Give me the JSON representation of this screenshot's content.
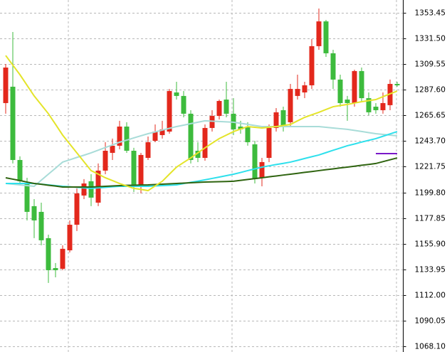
{
  "chart_data": {
    "type": "candlestick",
    "ylim": [
      1063.2,
      1364.4
    ],
    "yticks": [
      {
        "value": 1068.1,
        "label": "1068.10"
      },
      1090.05,
      {
        "value": 1112,
        "label": "1112.00"
      },
      1133.95,
      {
        "value": 1155.9,
        "label": "1155.90"
      },
      1177.85,
      {
        "value": 1199.8,
        "label": "1199.80"
      },
      1221.75,
      {
        "value": 1243.7,
        "label": "1243.70"
      },
      1265.65,
      {
        "value": 1287.6,
        "label": "1287.60"
      },
      1309.55,
      {
        "value": 1331.5,
        "label": "1331.50"
      },
      1353.45
    ],
    "grid": true,
    "up_color": "#e3281c",
    "down_color": "#3dbb3d",
    "open": [
      1276.2,
      1290.2,
      1227.5,
      1207.4,
      1188,
      1183.1,
      1160.6,
      1135,
      1134.4,
      1150.2,
      1172.1,
      1197.1,
      1209.3,
      1191,
      1218.4,
      1233.6,
      1239.7,
      1256.1,
      1235.4,
      1206.2,
      1229.3,
      1243.9,
      1248.8,
      1251.8,
      1285.3,
      1282.3,
      1267.1,
      1235.4,
      1229.3,
      1254.9,
      1265.2,
      1279.2,
      1267.1,
      1256.1,
      1256.1,
      1240.9,
      1212.3,
      1229.3,
      1254.9,
      1270.1,
      1259.8,
      1282.3,
      1285.3,
      1291.4,
      1324.9,
      1346.1,
      1318.8,
      1296.3,
      1279.2,
      1276.2,
      1303.6,
      1280.4,
      1273.1,
      1270.1,
      1274.4,
      1292.6
    ],
    "high": [
      1309.6,
      1337,
      1230.6,
      1212.3,
      1194,
      1191,
      1163.6,
      1139.3,
      1154.5,
      1175.8,
      1203.2,
      1211.1,
      1215.3,
      1224.5,
      1242.7,
      1245.8,
      1261,
      1259.8,
      1237.9,
      1233.6,
      1247.6,
      1257.9,
      1261,
      1288.3,
      1294.4,
      1286.5,
      1270.1,
      1242.7,
      1257.9,
      1270.1,
      1279.2,
      1294.4,
      1280.4,
      1261,
      1259.8,
      1243.9,
      1229.3,
      1257.9,
      1271.9,
      1273.1,
      1292.6,
      1300.5,
      1294.4,
      1330.9,
      1357.1,
      1347.4,
      1321.8,
      1300.5,
      1282.3,
      1304.8,
      1306.6,
      1285.3,
      1276.2,
      1285.3,
      1296.3,
      1294.4
    ],
    "low": [
      1267.1,
      1224.5,
      1206.2,
      1175.8,
      1160.6,
      1154.5,
      1122.3,
      1127.1,
      1133.2,
      1148.4,
      1166.7,
      1194,
      1188,
      1188,
      1215.3,
      1227.5,
      1236.6,
      1233.6,
      1200.1,
      1198.9,
      1227.5,
      1242.7,
      1245.8,
      1250,
      1279.2,
      1264,
      1224.5,
      1225.7,
      1226.9,
      1251.8,
      1262.2,
      1264,
      1248.8,
      1250,
      1239.7,
      1207.4,
      1205,
      1225.7,
      1251.8,
      1251.8,
      1256.1,
      1279.2,
      1280.4,
      1288.3,
      1321.8,
      1315.7,
      1288.3,
      1273.1,
      1261,
      1273.1,
      1278,
      1265.8,
      1267.1,
      1267.1,
      1270.1,
      1290.2
    ],
    "close": [
      1306.6,
      1227.5,
      1209.3,
      1183.1,
      1175.8,
      1158.8,
      1133.2,
      1133.2,
      1151.5,
      1172.1,
      1198.9,
      1207.4,
      1195.3,
      1218.4,
      1235.4,
      1239.7,
      1256.1,
      1235.4,
      1205,
      1231.8,
      1242.7,
      1251.8,
      1253.7,
      1286.5,
      1282.3,
      1267.1,
      1227.5,
      1229.3,
      1254.9,
      1265.2,
      1278,
      1267.1,
      1253.7,
      1253.7,
      1242.7,
      1211.1,
      1225.7,
      1254.9,
      1268.3,
      1256.1,
      1288.3,
      1288.3,
      1291.4,
      1324.9,
      1346.1,
      1318.8,
      1296.3,
      1276.2,
      1276.2,
      1303.6,
      1280.4,
      1268.3,
      1270.1,
      1276.2,
      1292.6,
      1291.4
    ],
    "series": [
      {
        "color": "#a8dcd8",
        "values": [
          1207.4,
          1206.8,
          1206.2,
          1205.6,
          1205,
          1210.2,
          1215.4,
          1220.5,
          1225.7,
          1227.7,
          1229.7,
          1231.6,
          1233.6,
          1235.9,
          1238.2,
          1240.4,
          1242.7,
          1244.5,
          1246.4,
          1248.2,
          1250,
          1251.5,
          1253.1,
          1254.6,
          1256.1,
          1257.3,
          1258.6,
          1259.8,
          1261,
          1260.7,
          1260.4,
          1260.1,
          1259.8,
          1258.9,
          1258,
          1257,
          1256.1,
          1256.1,
          1256.1,
          1256.1,
          1256.1,
          1256.1,
          1256.1,
          1256.1,
          1256.1,
          1255.5,
          1254.9,
          1254.3,
          1253.7,
          1252.8,
          1251.9,
          1250.9,
          1250,
          1249.4,
          1248.8,
          1248.2
        ]
      },
      {
        "color": "#2ee0ec",
        "values": [
          1207.4,
          1207.4,
          1207.4,
          1207.4,
          1207.4,
          1206.8,
          1206.2,
          1205.6,
          1205,
          1204.6,
          1204.1,
          1203.7,
          1203.2,
          1203.7,
          1204.1,
          1204.6,
          1205,
          1205,
          1205,
          1205,
          1205,
          1205.3,
          1205.6,
          1205.9,
          1206.2,
          1207.3,
          1208.4,
          1209.4,
          1210.5,
          1211.7,
          1212.9,
          1214.1,
          1215.3,
          1216.8,
          1218.4,
          1219.9,
          1221.4,
          1222.5,
          1223.6,
          1224.6,
          1225.7,
          1227.2,
          1228.8,
          1230.3,
          1231.8,
          1233.8,
          1235.8,
          1237.7,
          1239.7,
          1241.2,
          1242.8,
          1244.3,
          1245.8,
          1247.8,
          1249.8,
          1251.8
        ]
      },
      {
        "color": "#2f6410",
        "values": [
          1212.3,
          1211.1,
          1209.9,
          1208.6,
          1207.4,
          1206.7,
          1205.9,
          1205.2,
          1204.4,
          1204.4,
          1204.4,
          1204.4,
          1204.4,
          1204.7,
          1205,
          1205.3,
          1205.6,
          1205.8,
          1205.9,
          1206.1,
          1206.2,
          1206.5,
          1206.8,
          1207.1,
          1207.4,
          1207.7,
          1208,
          1208.3,
          1208.6,
          1208.8,
          1208.9,
          1209.1,
          1209.3,
          1210.1,
          1210.8,
          1211.6,
          1212.3,
          1213.1,
          1213.8,
          1214.6,
          1215.3,
          1216.1,
          1216.9,
          1217.6,
          1218.4,
          1219.2,
          1219.9,
          1220.7,
          1221.4,
          1222.2,
          1223,
          1223.7,
          1224.5,
          1226.1,
          1227.7,
          1229.3
        ]
      },
      {
        "color": "#e4e42a",
        "values": [
          1316.9,
          1308.7,
          1300.5,
          1291.4,
          1282.3,
          1274.7,
          1267.1,
          1258,
          1248.8,
          1241.2,
          1233.6,
          1226,
          1218.4,
          1215.4,
          1212.3,
          1209.9,
          1207.4,
          1205.3,
          1203.2,
          1202.3,
          1201.3,
          1205.3,
          1209.3,
          1215.4,
          1221.4,
          1225.4,
          1229.3,
          1233.6,
          1237.9,
          1241.9,
          1245.8,
          1248.8,
          1251.8,
          1254,
          1256.1,
          1255.5,
          1254.9,
          1255.5,
          1256.1,
          1257,
          1257.9,
          1261,
          1264,
          1266.2,
          1268.3,
          1270.7,
          1273.1,
          1274.1,
          1275,
          1276.2,
          1277.4,
          1278.3,
          1279.2,
          1281.7,
          1284.1,
          1286.5
        ]
      },
      {
        "color": "#7a18c8",
        "values": [
          null,
          null,
          null,
          null,
          null,
          null,
          null,
          null,
          null,
          null,
          null,
          null,
          null,
          null,
          null,
          null,
          null,
          null,
          null,
          null,
          null,
          null,
          null,
          null,
          null,
          null,
          null,
          null,
          null,
          null,
          null,
          null,
          null,
          null,
          null,
          null,
          null,
          null,
          null,
          null,
          null,
          null,
          null,
          null,
          null,
          null,
          null,
          null,
          null,
          null,
          null,
          null,
          1233,
          1233,
          1233,
          1233
        ]
      }
    ]
  }
}
